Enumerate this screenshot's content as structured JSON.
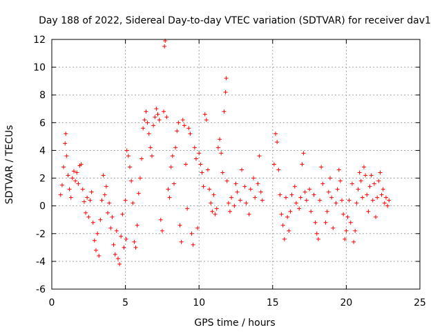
{
  "chart_data": {
    "type": "scatter",
    "title": "Day 188 of 2022, Sidereal Day-to-day VTEC variation (SDTVAR) for receiver dav1",
    "xlabel": "GPS time / hours",
    "ylabel": "SDTVAR / TECUs",
    "xlim": [
      0,
      25
    ],
    "ylim": [
      -6,
      12
    ],
    "xticks": [
      0,
      5,
      10,
      15,
      20,
      25
    ],
    "yticks": [
      -6,
      -4,
      -2,
      0,
      2,
      4,
      6,
      8,
      10,
      12
    ],
    "grid": true,
    "marker": "+",
    "color": "#ff0000",
    "series": [
      {
        "name": "SDTVAR",
        "points": [
          [
            0.6,
            0.8
          ],
          [
            0.7,
            1.5
          ],
          [
            0.8,
            2.8
          ],
          [
            0.9,
            4.5
          ],
          [
            0.95,
            5.2
          ],
          [
            1.0,
            3.6
          ],
          [
            1.1,
            2.2
          ],
          [
            1.2,
            1.2
          ],
          [
            1.3,
            0.6
          ],
          [
            1.4,
            2.0
          ],
          [
            1.5,
            2.5
          ],
          [
            1.6,
            1.8
          ],
          [
            1.7,
            2.4
          ],
          [
            1.8,
            1.6
          ],
          [
            1.9,
            2.9
          ],
          [
            2.0,
            3.0
          ],
          [
            2.1,
            1.2
          ],
          [
            2.2,
            0.3
          ],
          [
            2.3,
            -0.5
          ],
          [
            2.4,
            0.6
          ],
          [
            2.5,
            -0.8
          ],
          [
            2.6,
            0.4
          ],
          [
            2.7,
            1.0
          ],
          [
            2.8,
            -1.2
          ],
          [
            2.9,
            -2.5
          ],
          [
            3.0,
            -3.2
          ],
          [
            3.1,
            -2.0
          ],
          [
            3.2,
            -3.6
          ],
          [
            3.3,
            -1.0
          ],
          [
            3.4,
            0.4
          ],
          [
            3.5,
            2.2
          ],
          [
            3.6,
            0.8
          ],
          [
            3.7,
            1.4
          ],
          [
            3.8,
            -0.5
          ],
          [
            3.9,
            0.2
          ],
          [
            4.0,
            -1.6
          ],
          [
            4.1,
            -0.8
          ],
          [
            4.2,
            -2.8
          ],
          [
            4.3,
            -3.5
          ],
          [
            4.4,
            -1.8
          ],
          [
            4.5,
            -3.8
          ],
          [
            4.6,
            -4.2
          ],
          [
            4.7,
            -2.2
          ],
          [
            4.8,
            -0.6
          ],
          [
            4.9,
            -3.0
          ],
          [
            5.0,
            0.4
          ],
          [
            5.05,
            -2.4
          ],
          [
            5.1,
            4.0
          ],
          [
            5.2,
            3.6
          ],
          [
            5.3,
            2.8
          ],
          [
            5.4,
            1.8
          ],
          [
            5.5,
            0.2
          ],
          [
            5.6,
            -2.6
          ],
          [
            5.7,
            -3.0
          ],
          [
            5.8,
            -1.4
          ],
          [
            5.9,
            0.9
          ],
          [
            6.0,
            2.0
          ],
          [
            6.1,
            3.4
          ],
          [
            6.2,
            5.6
          ],
          [
            6.3,
            6.2
          ],
          [
            6.4,
            6.8
          ],
          [
            6.5,
            6.0
          ],
          [
            6.6,
            5.2
          ],
          [
            6.7,
            4.2
          ],
          [
            6.8,
            3.6
          ],
          [
            6.9,
            5.8
          ],
          [
            7.0,
            6.4
          ],
          [
            7.1,
            7.0
          ],
          [
            7.2,
            6.6
          ],
          [
            7.3,
            6.2
          ],
          [
            7.4,
            -1.0
          ],
          [
            7.5,
            -1.8
          ],
          [
            7.6,
            6.8
          ],
          [
            7.65,
            11.5
          ],
          [
            7.7,
            11.9
          ],
          [
            7.8,
            6.4
          ],
          [
            7.9,
            1.2
          ],
          [
            8.0,
            0.6
          ],
          [
            8.1,
            2.8
          ],
          [
            8.2,
            3.6
          ],
          [
            8.3,
            1.6
          ],
          [
            8.4,
            4.2
          ],
          [
            8.5,
            5.4
          ],
          [
            8.6,
            6.0
          ],
          [
            8.7,
            -1.4
          ],
          [
            8.8,
            -2.6
          ],
          [
            8.9,
            6.2
          ],
          [
            9.0,
            5.8
          ],
          [
            9.1,
            3.0
          ],
          [
            9.2,
            -0.2
          ],
          [
            9.3,
            5.6
          ],
          [
            9.4,
            5.2
          ],
          [
            9.5,
            -2.0
          ],
          [
            9.6,
            -2.8
          ],
          [
            9.7,
            4.2
          ],
          [
            9.8,
            3.4
          ],
          [
            9.9,
            -1.6
          ],
          [
            10.0,
            3.8
          ],
          [
            10.1,
            3.0
          ],
          [
            10.2,
            2.4
          ],
          [
            10.3,
            1.4
          ],
          [
            10.4,
            6.6
          ],
          [
            10.5,
            6.2
          ],
          [
            10.6,
            2.6
          ],
          [
            10.7,
            1.2
          ],
          [
            10.8,
            0.2
          ],
          [
            10.9,
            -0.4
          ],
          [
            11.0,
            0.8
          ],
          [
            11.1,
            -0.6
          ],
          [
            11.2,
            -0.2
          ],
          [
            11.3,
            4.2
          ],
          [
            11.4,
            4.8
          ],
          [
            11.5,
            3.8
          ],
          [
            11.6,
            2.4
          ],
          [
            11.7,
            6.8
          ],
          [
            11.8,
            8.2
          ],
          [
            11.85,
            9.2
          ],
          [
            11.9,
            1.8
          ],
          [
            12.0,
            0.2
          ],
          [
            12.1,
            -0.4
          ],
          [
            12.2,
            0.6
          ],
          [
            12.4,
            0.0
          ],
          [
            12.5,
            1.6
          ],
          [
            12.6,
            1.0
          ],
          [
            12.8,
            0.4
          ],
          [
            12.9,
            2.6
          ],
          [
            13.1,
            1.4
          ],
          [
            13.2,
            0.2
          ],
          [
            13.4,
            -0.6
          ],
          [
            13.5,
            1.2
          ],
          [
            13.7,
            2.0
          ],
          [
            13.8,
            0.6
          ],
          [
            14.0,
            1.6
          ],
          [
            14.1,
            3.6
          ],
          [
            14.2,
            1.0
          ],
          [
            14.3,
            0.4
          ],
          [
            15.1,
            3.0
          ],
          [
            15.2,
            5.2
          ],
          [
            15.3,
            4.6
          ],
          [
            15.4,
            2.6
          ],
          [
            15.5,
            0.8
          ],
          [
            15.6,
            -0.6
          ],
          [
            15.7,
            -1.4
          ],
          [
            15.8,
            -2.4
          ],
          [
            15.9,
            0.6
          ],
          [
            16.0,
            -0.8
          ],
          [
            16.1,
            -1.8
          ],
          [
            16.2,
            -0.4
          ],
          [
            16.3,
            0.8
          ],
          [
            16.5,
            1.4
          ],
          [
            16.6,
            0.2
          ],
          [
            16.8,
            -0.2
          ],
          [
            16.9,
            0.6
          ],
          [
            17.0,
            3.0
          ],
          [
            17.1,
            3.8
          ],
          [
            17.2,
            1.0
          ],
          [
            17.3,
            0.4
          ],
          [
            17.5,
            1.2
          ],
          [
            17.6,
            -0.4
          ],
          [
            17.8,
            0.8
          ],
          [
            17.9,
            -1.2
          ],
          [
            18.0,
            -2.0
          ],
          [
            18.1,
            -2.4
          ],
          [
            18.2,
            0.4
          ],
          [
            18.3,
            2.8
          ],
          [
            18.4,
            1.6
          ],
          [
            18.6,
            -1.2
          ],
          [
            18.7,
            -0.4
          ],
          [
            18.8,
            1.0
          ],
          [
            18.9,
            2.0
          ],
          [
            19.0,
            0.6
          ],
          [
            19.1,
            -1.6
          ],
          [
            19.3,
            0.2
          ],
          [
            19.4,
            1.2
          ],
          [
            19.5,
            2.6
          ],
          [
            19.6,
            1.8
          ],
          [
            19.7,
            0.4
          ],
          [
            19.8,
            -0.6
          ],
          [
            19.9,
            -2.4
          ],
          [
            20.0,
            -1.8
          ],
          [
            20.1,
            -0.8
          ],
          [
            20.2,
            0.4
          ],
          [
            20.3,
            -1.2
          ],
          [
            20.4,
            1.6
          ],
          [
            20.5,
            -2.6
          ],
          [
            20.6,
            -1.8
          ],
          [
            20.7,
            0.2
          ],
          [
            20.8,
            1.2
          ],
          [
            20.9,
            2.4
          ],
          [
            21.0,
            1.8
          ],
          [
            21.1,
            0.6
          ],
          [
            21.2,
            2.8
          ],
          [
            21.3,
            2.2
          ],
          [
            21.4,
            0.8
          ],
          [
            21.5,
            -0.4
          ],
          [
            21.6,
            1.4
          ],
          [
            21.7,
            2.2
          ],
          [
            21.8,
            0.4
          ],
          [
            21.9,
            1.6
          ],
          [
            22.0,
            -0.8
          ],
          [
            22.1,
            0.6
          ],
          [
            22.2,
            1.8
          ],
          [
            22.3,
            2.4
          ],
          [
            22.4,
            0.8
          ],
          [
            22.5,
            1.2
          ],
          [
            22.6,
            0.2
          ],
          [
            22.7,
            0.6
          ],
          [
            22.8,
            0.0
          ],
          [
            22.9,
            0.4
          ]
        ]
      }
    ]
  }
}
